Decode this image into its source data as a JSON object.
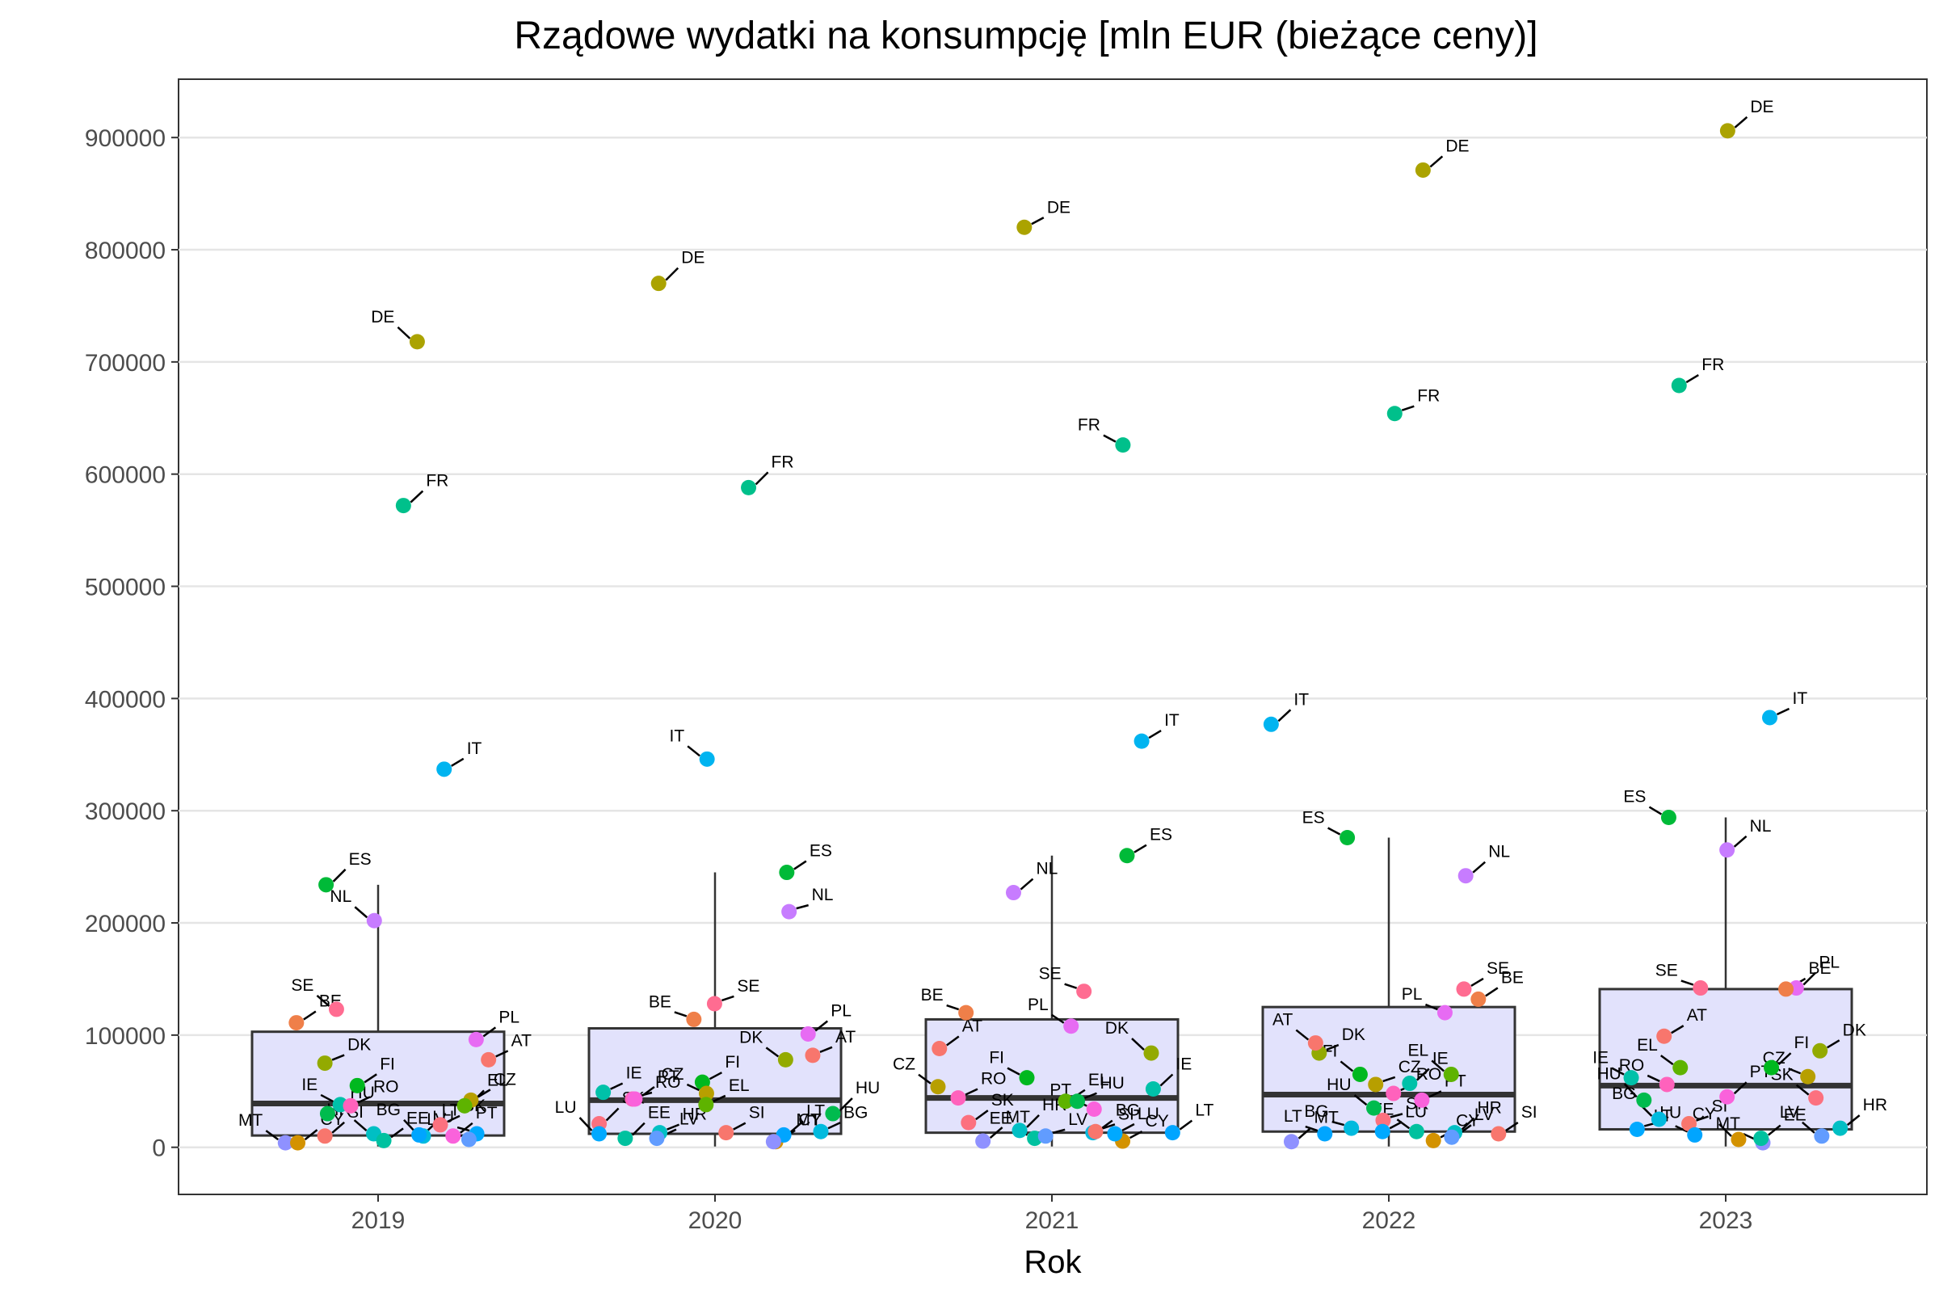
{
  "chart_data": {
    "type": "scatter",
    "title": "Rządowe wydatki na konsumpcję [mln EUR (bieżące ceny)]",
    "xlabel": "Rok",
    "ylabel": "",
    "categories": [
      "2019",
      "2020",
      "2021",
      "2022",
      "2023"
    ],
    "ylim": [
      -42000,
      952000
    ],
    "yticks": [
      "0",
      "100000",
      "200000",
      "300000",
      "400000",
      "500000",
      "600000",
      "700000",
      "800000",
      "900000"
    ],
    "grid": true,
    "legend": "none",
    "boxplots": [
      {
        "year": "2019",
        "min": 700,
        "q1": 10500,
        "median": 39000,
        "q3": 103000,
        "max": 234000
      },
      {
        "year": "2020",
        "min": 700,
        "q1": 12000,
        "median": 42000,
        "q3": 106000,
        "max": 245000
      },
      {
        "year": "2021",
        "min": 700,
        "q1": 13000,
        "median": 44000,
        "q3": 114000,
        "max": 260000
      },
      {
        "year": "2022",
        "min": 700,
        "q1": 14000,
        "median": 47000,
        "q3": 125000,
        "max": 276000
      },
      {
        "year": "2023",
        "min": 700,
        "q1": 16000,
        "median": 55000,
        "q3": 141000,
        "max": 294000
      }
    ],
    "countries": [
      "AT",
      "BE",
      "BG",
      "CY",
      "CZ",
      "DE",
      "DK",
      "EE",
      "EL",
      "ES",
      "FI",
      "FR",
      "HR",
      "HU",
      "IE",
      "IT",
      "LT",
      "LU",
      "LV",
      "MT",
      "NL",
      "PL",
      "PT",
      "RO",
      "SE",
      "SI",
      "SK"
    ],
    "colors": {
      "AT": "#F8766D",
      "BE": "#EF7F49",
      "BG": "#00BADE",
      "CY": "#D39200",
      "CZ": "#B79F00",
      "DE": "#ABA300",
      "DK": "#93AA00",
      "EE": "#00C19F",
      "EL": "#5EB300",
      "ES": "#00BA38",
      "FI": "#00B81F",
      "FR": "#00C08B",
      "HR": "#00BFC4",
      "HU": "#00BB4E",
      "IE": "#00C1A9",
      "IT": "#00B4F0",
      "LT": "#00A5FF",
      "LU": "#00A9FF",
      "LV": "#619CFF",
      "MT": "#8F91FF",
      "NL": "#C77CFF",
      "PL": "#E76BF3",
      "PT": "#FA62DB",
      "RO": "#FF62BC",
      "SE": "#FF6C91",
      "SI": "#F8766D",
      "SK": "#FC717F"
    },
    "points": {
      "2019": {
        "DE": 718000,
        "FR": 572000,
        "IT": 337000,
        "ES": 234000,
        "NL": 202000,
        "SE": 123000,
        "BE": 111000,
        "PL": 96000,
        "AT": 78000,
        "DK": 75000,
        "FI": 55000,
        "CZ": 42000,
        "EL": 37000,
        "IE": 38000,
        "RO": 37000,
        "HU": 30000,
        "SK": 20000,
        "PT": 10000,
        "HR": 12000,
        "BG": 10000,
        "SI": 10000,
        "LU": 12000,
        "LV": 7000,
        "MT": 4000,
        "CY": 4000,
        "EE": 6000,
        "LT": 11000
      },
      "2020": {
        "DE": 770000,
        "FR": 588000,
        "IT": 346000,
        "ES": 245000,
        "NL": 210000,
        "SE": 128000,
        "BE": 114000,
        "PL": 101000,
        "DK": 78000,
        "AT": 82000,
        "FI": 58000,
        "RO": 43000,
        "CZ": 48000,
        "IE": 49000,
        "PT": 43000,
        "EL": 38000,
        "HU": 30000,
        "SK": 21000,
        "HR": 13000,
        "LU": 12000,
        "CY": 5000,
        "BG": 14000,
        "EE": 8000,
        "SI": 13000,
        "LT": 11000,
        "LV": 8000,
        "MT": 5000
      },
      "2021": {
        "DE": 820000,
        "FR": 626000,
        "IT": 362000,
        "ES": 260000,
        "NL": 227000,
        "SE": 139000,
        "BE": 120000,
        "PL": 108000,
        "AT": 88000,
        "DK": 84000,
        "FI": 62000,
        "CZ": 54000,
        "IE": 52000,
        "RO": 44000,
        "EL": 41000,
        "HU": 41000,
        "PT": 34000,
        "SK": 22000,
        "HR": 15000,
        "BG": 13000,
        "CY": 5500,
        "EE": 8000,
        "LU": 12000,
        "LT": 13000,
        "LV": 10000,
        "MT": 5500,
        "SI": 14000
      },
      "2022": {
        "DE": 871000,
        "FR": 654000,
        "IT": 377000,
        "ES": 276000,
        "NL": 242000,
        "SE": 141000,
        "BE": 132000,
        "PL": 120000,
        "DK": 84000,
        "AT": 93000,
        "EL": 65000,
        "FI": 65000,
        "PT": 42000,
        "CZ": 56000,
        "IE": 57000,
        "RO": 48000,
        "SK": 24000,
        "LU": 14000,
        "HR": 13000,
        "CY": 6000,
        "EE": 14000,
        "LT": 12000,
        "BG": 17000,
        "HU": 35000,
        "SI": 12000,
        "LV": 9000,
        "MT": 5000
      },
      "2023": {
        "DE": 906000,
        "FR": 679000,
        "IT": 383000,
        "ES": 294000,
        "NL": 265000,
        "PL": 142000,
        "SE": 142000,
        "BE": 141000,
        "AT": 99000,
        "DK": 86000,
        "FI": 71000,
        "EL": 71000,
        "RO": 56000,
        "CZ": 63000,
        "PT": 45000,
        "IE": 62000,
        "HU": 42000,
        "SK": 44000,
        "BG": 25000,
        "SI": 21000,
        "LU": 16000,
        "HR": 17000,
        "LT": 11000,
        "LV": 10000,
        "MT": 4000,
        "EE": 8000,
        "CY": 7000
      }
    }
  }
}
